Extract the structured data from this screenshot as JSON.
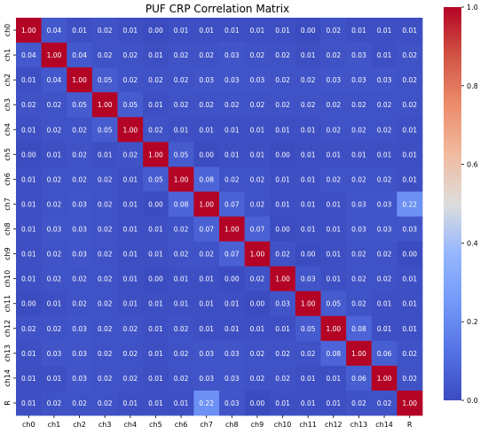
{
  "chart_data": {
    "type": "heatmap",
    "title": "PUF CRP Correlation Matrix",
    "xlabel": "",
    "ylabel": "",
    "labels": [
      "ch0",
      "ch1",
      "ch2",
      "ch3",
      "ch4",
      "ch5",
      "ch6",
      "ch7",
      "ch8",
      "ch9",
      "ch10",
      "ch11",
      "ch12",
      "ch13",
      "ch14",
      "R"
    ],
    "values": [
      [
        1.0,
        0.04,
        0.01,
        0.02,
        0.01,
        0.0,
        0.01,
        0.01,
        0.01,
        0.01,
        0.01,
        0.0,
        0.02,
        0.01,
        0.01,
        0.01
      ],
      [
        0.04,
        1.0,
        0.04,
        0.02,
        0.02,
        0.01,
        0.02,
        0.02,
        0.03,
        0.02,
        0.02,
        0.01,
        0.02,
        0.03,
        0.01,
        0.02
      ],
      [
        0.01,
        0.04,
        1.0,
        0.05,
        0.02,
        0.02,
        0.02,
        0.03,
        0.03,
        0.03,
        0.02,
        0.02,
        0.03,
        0.03,
        0.03,
        0.02
      ],
      [
        0.02,
        0.02,
        0.05,
        1.0,
        0.05,
        0.01,
        0.02,
        0.02,
        0.02,
        0.02,
        0.02,
        0.02,
        0.02,
        0.02,
        0.02,
        0.02
      ],
      [
        0.01,
        0.02,
        0.02,
        0.05,
        1.0,
        0.02,
        0.01,
        0.01,
        0.01,
        0.01,
        0.01,
        0.01,
        0.02,
        0.02,
        0.02,
        0.01
      ],
      [
        0.0,
        0.01,
        0.02,
        0.01,
        0.02,
        1.0,
        0.05,
        -0.0,
        0.01,
        0.01,
        0.0,
        0.01,
        0.01,
        0.01,
        0.01,
        0.01
      ],
      [
        0.01,
        0.02,
        0.02,
        0.02,
        0.01,
        0.05,
        1.0,
        0.08,
        0.02,
        0.02,
        0.01,
        0.01,
        0.02,
        0.02,
        0.02,
        0.01
      ],
      [
        0.01,
        0.02,
        0.03,
        0.02,
        0.01,
        -0.0,
        0.08,
        1.0,
        0.07,
        0.02,
        0.01,
        0.01,
        0.01,
        0.03,
        0.03,
        0.22
      ],
      [
        0.01,
        0.03,
        0.03,
        0.02,
        0.01,
        0.01,
        0.02,
        0.07,
        1.0,
        0.07,
        0.0,
        0.01,
        0.01,
        0.03,
        0.03,
        0.03
      ],
      [
        0.01,
        0.02,
        0.03,
        0.02,
        0.01,
        0.01,
        0.02,
        0.02,
        0.07,
        1.0,
        0.02,
        -0.0,
        0.01,
        0.02,
        0.02,
        0.0
      ],
      [
        0.01,
        0.02,
        0.02,
        0.02,
        0.01,
        0.0,
        0.01,
        0.01,
        0.0,
        0.02,
        1.0,
        0.03,
        0.01,
        0.02,
        0.02,
        0.01
      ],
      [
        0.0,
        0.01,
        0.02,
        0.02,
        0.01,
        0.01,
        0.01,
        0.01,
        0.01,
        -0.0,
        0.03,
        1.0,
        0.05,
        0.02,
        0.01,
        0.01
      ],
      [
        0.02,
        0.02,
        0.03,
        0.02,
        0.02,
        0.01,
        0.02,
        0.01,
        0.01,
        0.01,
        0.01,
        0.05,
        1.0,
        0.08,
        0.01,
        0.01
      ],
      [
        0.01,
        0.03,
        0.03,
        0.02,
        0.02,
        0.01,
        0.02,
        0.03,
        0.03,
        0.02,
        0.02,
        0.02,
        0.08,
        1.0,
        0.06,
        0.02
      ],
      [
        0.01,
        0.01,
        0.03,
        0.02,
        0.02,
        0.01,
        0.02,
        0.03,
        0.03,
        0.02,
        0.02,
        0.01,
        0.01,
        0.06,
        1.0,
        0.02
      ],
      [
        0.01,
        0.02,
        0.02,
        0.02,
        0.01,
        0.01,
        0.01,
        0.22,
        0.03,
        0.0,
        0.01,
        0.01,
        0.01,
        0.02,
        0.02,
        1.0
      ]
    ],
    "vmin": 0.0,
    "vmax": 1.0,
    "colorscale": "coolwarm",
    "colorbar_ticks": [
      0.0,
      0.2,
      0.4,
      0.6,
      0.8,
      1.0
    ],
    "colorbar_tick_labels": [
      "0.0",
      "0.2",
      "0.4",
      "0.6",
      "0.8",
      "1.0"
    ],
    "annotations": "cell values shown with two decimals",
    "grid": false,
    "legend": "colorbar-right"
  }
}
